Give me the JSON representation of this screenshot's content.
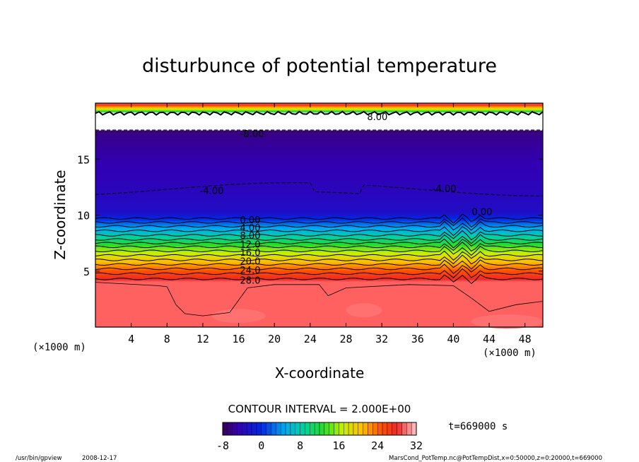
{
  "chart_data": {
    "type": "heatmap",
    "title": "disturbunce of potential temperature",
    "xlabel": "X-coordinate",
    "ylabel": "Z-coordinate",
    "x_unit": "(×1000 m)",
    "y_unit": "(×1000 m)",
    "xlim": [
      0,
      50
    ],
    "ylim": [
      0,
      20
    ],
    "x_ticks": [
      4,
      8,
      12,
      16,
      20,
      24,
      28,
      32,
      36,
      40,
      44,
      48
    ],
    "y_ticks": [
      5,
      10,
      15
    ],
    "contour_interval_text": "CONTOUR INTERVAL = 2.000E+00",
    "time_text": "t=669000 s",
    "colorbar": {
      "min": -8,
      "max": 32,
      "ticks": [
        -8,
        0,
        8,
        16,
        24,
        32
      ]
    },
    "contour_labels": [
      {
        "text": "-8.00",
        "x": 17.5,
        "z": 17.3
      },
      {
        "text": "-4.00",
        "x": 13.0,
        "z": 12.2
      },
      {
        "text": "-4.00",
        "x": 39.0,
        "z": 12.4
      },
      {
        "text": "0.00",
        "x": 17.3,
        "z": 9.6
      },
      {
        "text": "4.00",
        "x": 17.3,
        "z": 8.9
      },
      {
        "text": "8.00",
        "x": 17.3,
        "z": 8.2
      },
      {
        "text": "12.0",
        "x": 17.3,
        "z": 7.4
      },
      {
        "text": "16.0",
        "x": 17.3,
        "z": 6.7
      },
      {
        "text": "20.0",
        "x": 17.3,
        "z": 5.9
      },
      {
        "text": "24.0",
        "x": 17.3,
        "z": 5.1
      },
      {
        "text": "28.0",
        "x": 17.3,
        "z": 4.2
      },
      {
        "text": "8.00",
        "x": 31.5,
        "z": 18.8
      },
      {
        "text": "0.00",
        "x": 43.2,
        "z": 10.3
      }
    ],
    "field_profile": [
      {
        "z": 0.0,
        "value": 30
      },
      {
        "z": 4.0,
        "value": 30
      },
      {
        "z": 4.3,
        "value": 28
      },
      {
        "z": 5.0,
        "value": 25
      },
      {
        "z": 6.0,
        "value": 20
      },
      {
        "z": 7.0,
        "value": 15
      },
      {
        "z": 8.0,
        "value": 9
      },
      {
        "z": 9.0,
        "value": 4
      },
      {
        "z": 9.7,
        "value": 0
      },
      {
        "z": 10.2,
        "value": -3
      },
      {
        "z": 12.0,
        "value": -4
      },
      {
        "z": 15.0,
        "value": -5
      },
      {
        "z": 17.0,
        "value": -6
      },
      {
        "z": 17.6,
        "value": -7
      },
      {
        "z": 18.0,
        "value": null
      },
      {
        "z": 19.0,
        "value": null
      },
      {
        "z": 19.2,
        "value": 10
      },
      {
        "z": 19.6,
        "value": 20
      },
      {
        "z": 20.0,
        "value": 30
      }
    ]
  },
  "footer": {
    "program": "/usr/bin/gpview",
    "date": "2008-12-17",
    "source": "MarsCond_PotTemp.nc@PotTempDist,x=0:50000,z=0:20000,t=669000"
  }
}
